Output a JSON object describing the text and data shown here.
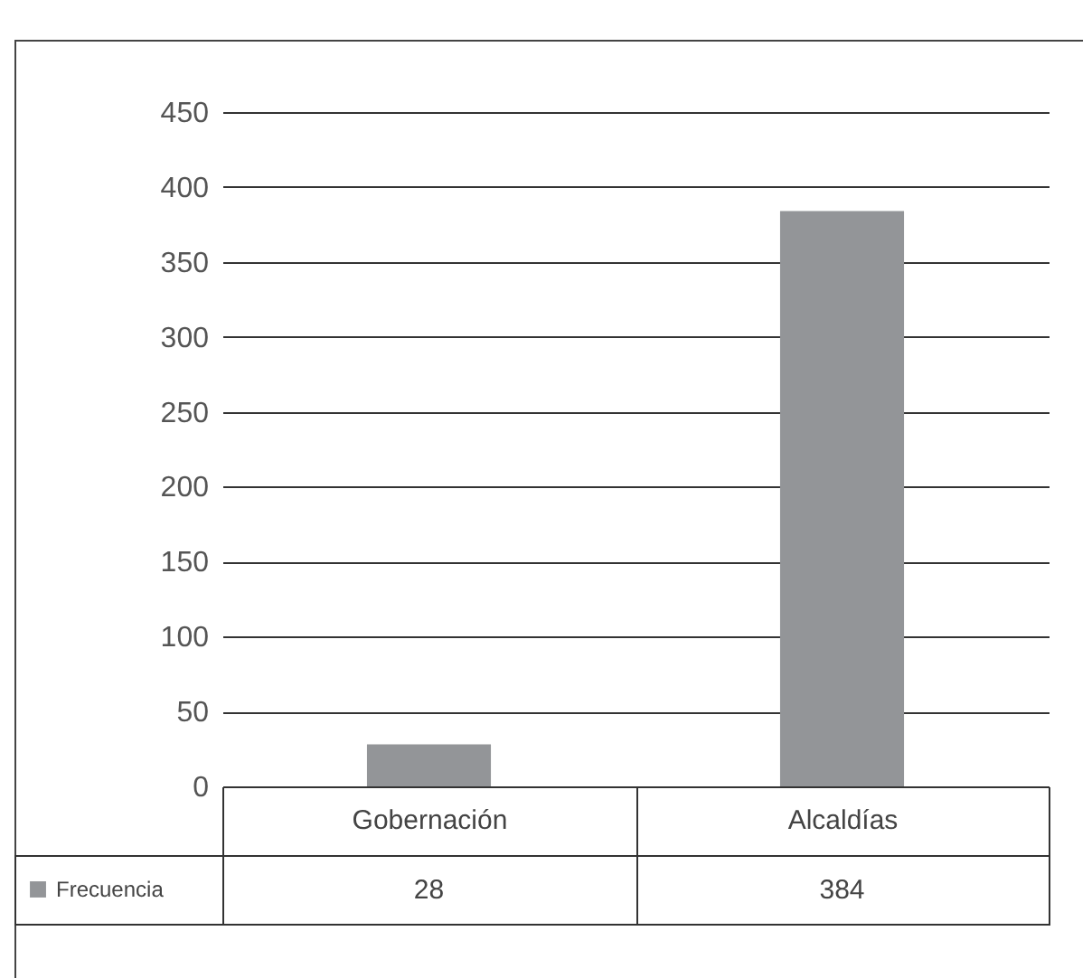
{
  "chart_data": {
    "type": "bar",
    "categories": [
      "Gobernación",
      "Alcaldías"
    ],
    "series": [
      {
        "name": "Frecuencia",
        "color": "#939598",
        "values": [
          28,
          384
        ]
      }
    ],
    "ylim": [
      0,
      450
    ],
    "yticks": [
      0,
      50,
      100,
      150,
      200,
      250,
      300,
      350,
      400,
      450
    ],
    "grid": "y",
    "legend": "bottom left",
    "data_labels": true
  }
}
